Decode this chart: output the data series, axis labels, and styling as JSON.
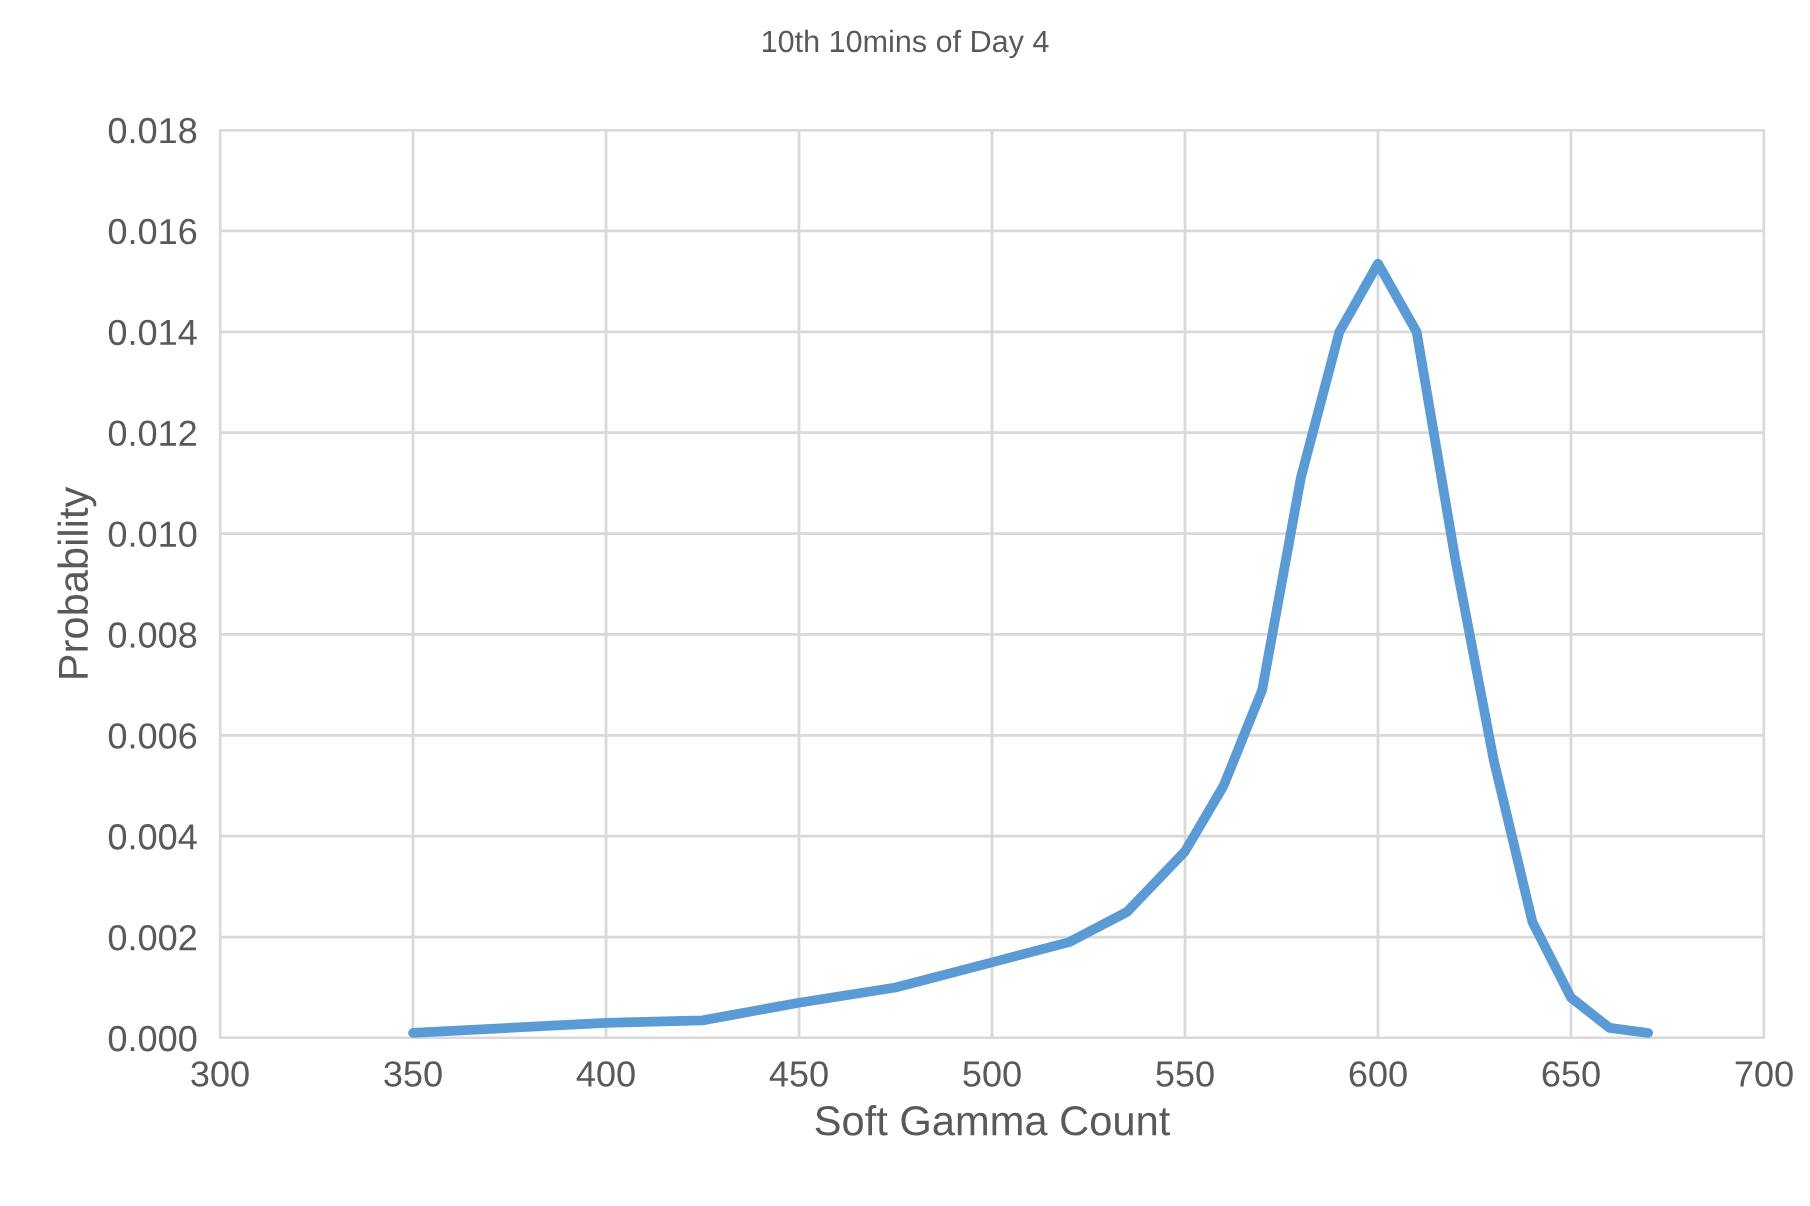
{
  "chart_data": {
    "type": "line",
    "title": "10th 10mins of Day 4",
    "xlabel": "Soft Gamma Count",
    "ylabel": "Probability",
    "series": [
      {
        "color": "#5b9bd5",
        "x": [
          350,
          400,
          425,
          450,
          475,
          500,
          520,
          535,
          550,
          560,
          570,
          580,
          590,
          600,
          610,
          620,
          630,
          640,
          650,
          660,
          670
        ],
        "values": [
          0.0001,
          0.0003,
          0.00035,
          0.0007,
          0.001,
          0.0015,
          0.0019,
          0.0025,
          0.0037,
          0.005,
          0.0069,
          0.0111,
          0.014,
          0.01535,
          0.014,
          0.0095,
          0.0055,
          0.0023,
          0.0008,
          0.0002,
          0.0001
        ]
      }
    ],
    "xlim": [
      300,
      700
    ],
    "xticks": [
      300,
      350,
      400,
      450,
      500,
      550,
      600,
      650,
      700
    ],
    "ylim": [
      0,
      0.018
    ],
    "yticks": [
      {
        "value": 0,
        "label": "0.000"
      },
      {
        "value": 0.002,
        "label": "0.002"
      },
      {
        "value": 0.004,
        "label": "0.004"
      },
      {
        "value": 0.006,
        "label": "0.006"
      },
      {
        "value": 0.008,
        "label": "0.008"
      },
      {
        "value": 0.01,
        "label": "0.010"
      },
      {
        "value": 0.012,
        "label": "0.012"
      },
      {
        "value": 0.014,
        "label": "0.014"
      },
      {
        "value": 0.016,
        "label": "0.016"
      },
      {
        "value": 0.018,
        "label": "0.018"
      }
    ],
    "grid": true,
    "line_style": "solid",
    "marker": "none"
  }
}
